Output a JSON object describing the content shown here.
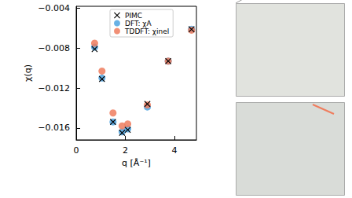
{
  "chart_data": {
    "type": "scatter",
    "x_label": "q [Å⁻¹]",
    "y_label": "χ(q)",
    "xlim": [
      0,
      4.9
    ],
    "xticks": [
      0,
      2,
      4
    ],
    "ylim": [
      -0.0172,
      -0.0038
    ],
    "yticks": [
      {
        "value": -0.004,
        "label": "−0.004"
      },
      {
        "value": -0.008,
        "label": "−0.008"
      },
      {
        "value": -0.012,
        "label": "−0.012"
      },
      {
        "value": -0.016,
        "label": "−0.016"
      }
    ],
    "grid": false,
    "legend": "top",
    "series": [
      {
        "name": "PIMC",
        "color": "#000000",
        "marker": "x",
        "x": [
          0.75,
          1.05,
          1.5,
          1.87,
          2.1,
          2.9,
          3.75,
          4.7
        ],
        "values": [
          -0.0081,
          -0.0111,
          -0.0154,
          -0.0165,
          -0.0162,
          -0.0136,
          -0.0093,
          -0.0061
        ]
      },
      {
        "name": "DFT: χA",
        "color": "#4ea3e0",
        "marker": "circle",
        "x": [
          0.75,
          1.05,
          1.5,
          1.87,
          2.1,
          2.9,
          3.75,
          4.7
        ],
        "values": [
          -0.0079,
          -0.011,
          -0.0154,
          -0.0164,
          -0.0161,
          -0.0139,
          -0.0093,
          -0.0061
        ]
      },
      {
        "name": "TDDFT: χinel",
        "color": "#ef7d5e",
        "marker": "circle",
        "x": [
          0.75,
          1.05,
          1.5,
          1.87,
          2.1,
          2.9,
          3.75,
          4.7
        ],
        "values": [
          -0.0075,
          -0.0103,
          -0.0145,
          -0.0158,
          -0.0156,
          -0.0137,
          -0.0093,
          -0.0062
        ]
      }
    ]
  }
}
